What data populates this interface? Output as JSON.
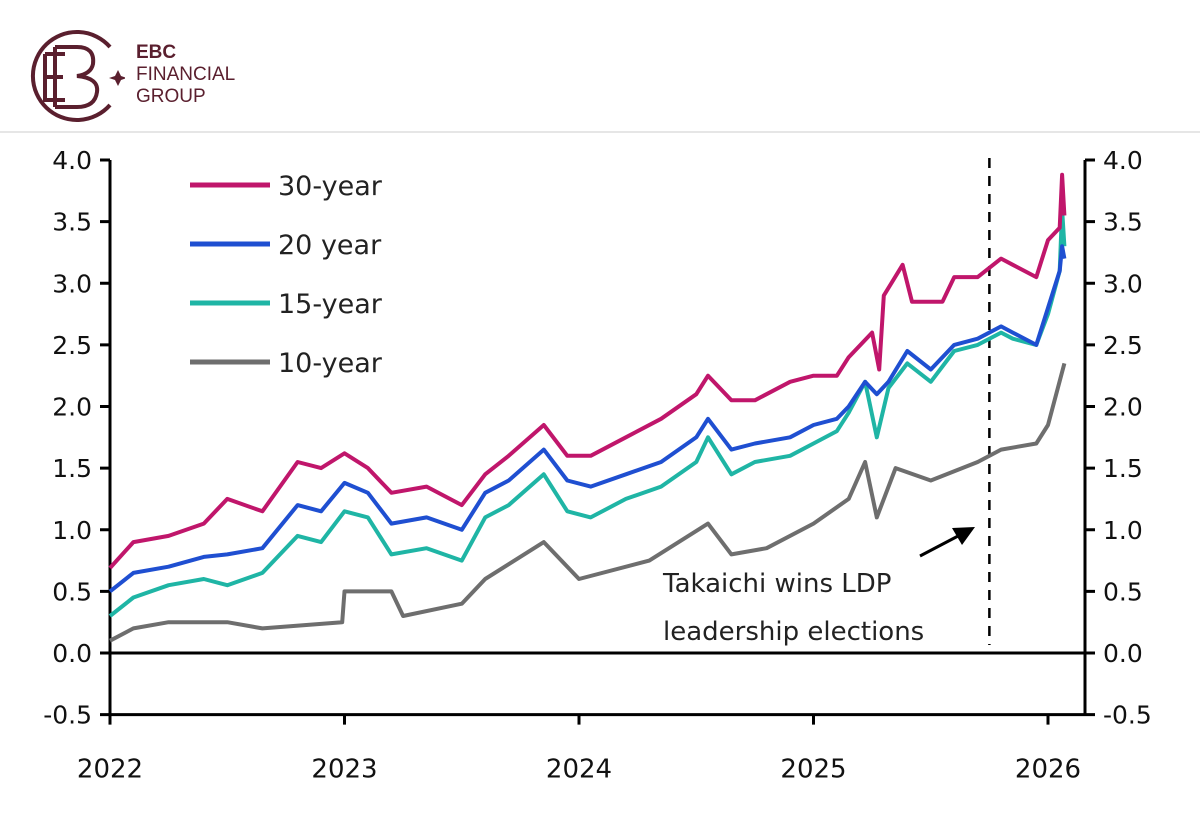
{
  "brand": {
    "name_line1": "EBC",
    "name_line2": "FINANCIAL",
    "name_line3": "GROUP",
    "color": "#5a1f2e"
  },
  "chart_data": {
    "type": "line",
    "title": "",
    "xlabel": "",
    "ylabel": "",
    "xlim": [
      2022,
      2026.15
    ],
    "ylim": [
      -0.5,
      4.0
    ],
    "x_ticks": [
      "2022",
      "2023",
      "2024",
      "2025",
      "2026"
    ],
    "y_ticks": [
      "-0.5",
      "0.0",
      "0.5",
      "1.0",
      "1.5",
      "2.0",
      "2.5",
      "3.0",
      "3.5",
      "4.0"
    ],
    "dual_y_axis": true,
    "grid": false,
    "legend_placement": "top-left",
    "series": [
      {
        "name": "30-year",
        "color": "#c0166b",
        "x": [
          2022.0,
          2022.1,
          2022.25,
          2022.4,
          2022.5,
          2022.65,
          2022.8,
          2022.9,
          2023.0,
          2023.1,
          2023.2,
          2023.35,
          2023.5,
          2023.6,
          2023.7,
          2023.85,
          2023.95,
          2024.05,
          2024.2,
          2024.35,
          2024.5,
          2024.55,
          2024.65,
          2024.75,
          2024.9,
          2025.0,
          2025.1,
          2025.15,
          2025.25,
          2025.28,
          2025.3,
          2025.38,
          2025.42,
          2025.55,
          2025.6,
          2025.7,
          2025.8,
          2025.85,
          2025.95,
          2026.0,
          2026.05,
          2026.06,
          2026.07
        ],
        "y": [
          0.69,
          0.9,
          0.95,
          1.05,
          1.25,
          1.15,
          1.55,
          1.5,
          1.62,
          1.5,
          1.3,
          1.35,
          1.2,
          1.45,
          1.6,
          1.85,
          1.6,
          1.6,
          1.75,
          1.9,
          2.1,
          2.25,
          2.05,
          2.05,
          2.2,
          2.25,
          2.25,
          2.4,
          2.6,
          2.3,
          2.9,
          3.15,
          2.85,
          2.85,
          3.05,
          3.05,
          3.2,
          3.15,
          3.05,
          3.35,
          3.45,
          3.88,
          3.55
        ]
      },
      {
        "name": "20 year",
        "color": "#1f4fd1",
        "x": [
          2022.0,
          2022.1,
          2022.25,
          2022.4,
          2022.5,
          2022.65,
          2022.8,
          2022.9,
          2023.0,
          2023.1,
          2023.2,
          2023.35,
          2023.5,
          2023.6,
          2023.7,
          2023.85,
          2023.95,
          2024.05,
          2024.2,
          2024.35,
          2024.5,
          2024.55,
          2024.65,
          2024.75,
          2024.9,
          2025.0,
          2025.1,
          2025.15,
          2025.22,
          2025.27,
          2025.32,
          2025.4,
          2025.5,
          2025.6,
          2025.7,
          2025.8,
          2025.85,
          2025.95,
          2026.0,
          2026.05,
          2026.06,
          2026.07
        ],
        "y": [
          0.5,
          0.65,
          0.7,
          0.78,
          0.8,
          0.85,
          1.2,
          1.15,
          1.38,
          1.3,
          1.05,
          1.1,
          1.0,
          1.3,
          1.4,
          1.65,
          1.4,
          1.35,
          1.45,
          1.55,
          1.75,
          1.9,
          1.65,
          1.7,
          1.75,
          1.85,
          1.9,
          2.0,
          2.2,
          2.1,
          2.2,
          2.45,
          2.3,
          2.5,
          2.55,
          2.65,
          2.6,
          2.5,
          2.8,
          3.1,
          3.3,
          3.2
        ]
      },
      {
        "name": "15-year",
        "color": "#1fb5a5",
        "x": [
          2022.0,
          2022.1,
          2022.25,
          2022.4,
          2022.5,
          2022.65,
          2022.8,
          2022.9,
          2023.0,
          2023.1,
          2023.2,
          2023.35,
          2023.5,
          2023.6,
          2023.7,
          2023.85,
          2023.95,
          2024.05,
          2024.2,
          2024.35,
          2024.5,
          2024.55,
          2024.65,
          2024.75,
          2024.9,
          2025.0,
          2025.1,
          2025.15,
          2025.22,
          2025.27,
          2025.32,
          2025.4,
          2025.5,
          2025.6,
          2025.7,
          2025.8,
          2025.85,
          2025.95,
          2026.0,
          2026.05,
          2026.06,
          2026.07
        ],
        "y": [
          0.3,
          0.45,
          0.55,
          0.6,
          0.55,
          0.65,
          0.95,
          0.9,
          1.15,
          1.1,
          0.8,
          0.85,
          0.75,
          1.1,
          1.2,
          1.45,
          1.15,
          1.1,
          1.25,
          1.35,
          1.55,
          1.75,
          1.45,
          1.55,
          1.6,
          1.7,
          1.8,
          1.95,
          2.2,
          1.75,
          2.15,
          2.35,
          2.2,
          2.45,
          2.5,
          2.6,
          2.55,
          2.5,
          2.75,
          3.1,
          3.6,
          3.3
        ]
      },
      {
        "name": "10-year",
        "color": "#6e6e6e",
        "x": [
          2022.0,
          2022.1,
          2022.25,
          2022.5,
          2022.65,
          2022.99,
          2023.0,
          2023.2,
          2023.25,
          2023.5,
          2023.6,
          2023.85,
          2024.0,
          2024.3,
          2024.55,
          2024.65,
          2024.8,
          2025.0,
          2025.15,
          2025.22,
          2025.27,
          2025.35,
          2025.5,
          2025.7,
          2025.8,
          2025.95,
          2026.0,
          2026.07
        ],
        "y": [
          0.1,
          0.2,
          0.25,
          0.25,
          0.2,
          0.25,
          0.5,
          0.5,
          0.3,
          0.4,
          0.6,
          0.9,
          0.6,
          0.75,
          1.05,
          0.8,
          0.85,
          1.05,
          1.25,
          1.55,
          1.1,
          1.5,
          1.4,
          1.55,
          1.65,
          1.7,
          1.85,
          2.35
        ]
      }
    ],
    "annotations": [
      {
        "text_line1": "Takaichi wins LDP",
        "text_line2": "leadership elections",
        "x": 2025.75,
        "style": "dashed-vertical-line-with-arrow"
      }
    ]
  }
}
